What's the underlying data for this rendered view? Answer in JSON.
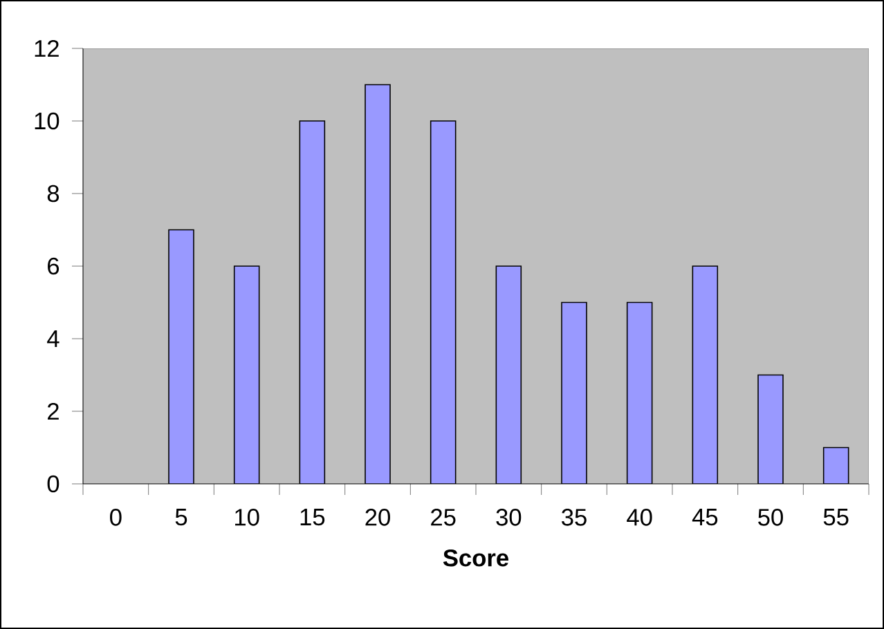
{
  "chart_data": {
    "type": "bar",
    "xlabel": "Score",
    "categories": [
      "0",
      "5",
      "10",
      "15",
      "20",
      "25",
      "30",
      "35",
      "40",
      "45",
      "50",
      "55"
    ],
    "values": [
      0,
      7,
      6,
      10,
      11,
      10,
      6,
      5,
      5,
      6,
      3,
      1
    ],
    "color": "#9999ff",
    "ylim": [
      0,
      12
    ],
    "yticks": [
      0,
      2,
      4,
      6,
      8,
      10,
      12
    ]
  }
}
